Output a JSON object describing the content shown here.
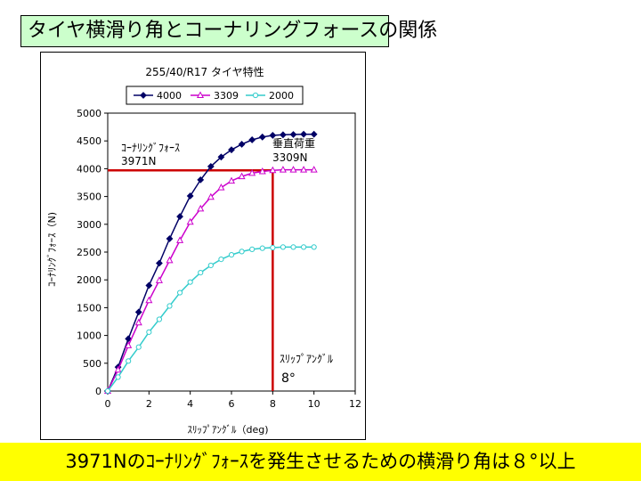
{
  "slide": {
    "title": "タイヤ横滑り角とコーナリングフォースの関係",
    "conclusion": "3971Nのｺｰﾅﾘﾝｸﾞﾌｫｰｽを発生させるための横滑り角は８°以上"
  },
  "colors": {
    "title_bg": "#ccffcc",
    "band_bg": "#ffff00",
    "guide_line": "#cc0000"
  },
  "chart_data": {
    "type": "line",
    "title": "255/40/R17 タイヤ特性",
    "xlabel": "ｽﾘｯﾌﾟｱﾝｸﾞﾙ（deg)",
    "ylabel": "ｺｰﾅﾘﾝｸﾞﾌｫｰｽ（N)",
    "xlim": [
      0,
      12
    ],
    "ylim": [
      0,
      5000
    ],
    "x_ticks": [
      0,
      2,
      4,
      6,
      8,
      10,
      12
    ],
    "y_ticks": [
      0,
      500,
      1000,
      1500,
      2000,
      2500,
      3000,
      3500,
      4000,
      4500,
      5000
    ],
    "grid": false,
    "legend_position": "top",
    "x": [
      0,
      0.5,
      1,
      1.5,
      2,
      2.5,
      3,
      3.5,
      4,
      4.5,
      5,
      5.5,
      6,
      6.5,
      7,
      7.5,
      8,
      8.5,
      9,
      9.5,
      10
    ],
    "series": [
      {
        "name": "4000",
        "color": "#000066",
        "marker": "diamond",
        "values": [
          0,
          430,
          940,
          1420,
          1900,
          2300,
          2740,
          3140,
          3510,
          3800,
          4040,
          4210,
          4340,
          4440,
          4520,
          4570,
          4600,
          4610,
          4615,
          4620,
          4620
        ]
      },
      {
        "name": "3309",
        "color": "#cc00cc",
        "marker": "triangle",
        "values": [
          0,
          380,
          820,
          1230,
          1630,
          1990,
          2350,
          2710,
          3040,
          3280,
          3490,
          3660,
          3780,
          3860,
          3920,
          3950,
          3970,
          3980,
          3980,
          3980,
          3980
        ]
      },
      {
        "name": "2000",
        "color": "#33cccc",
        "marker": "circle",
        "values": [
          0,
          250,
          540,
          790,
          1060,
          1290,
          1530,
          1770,
          1960,
          2130,
          2260,
          2370,
          2450,
          2510,
          2550,
          2570,
          2580,
          2590,
          2590,
          2590,
          2590
        ]
      }
    ],
    "reference": {
      "x": 8,
      "y": 3971
    },
    "annotations": {
      "force_label": "ｺｰﾅﾘﾝｸﾞﾌｫｰｽ",
      "force_value": "3971N",
      "load_label": "垂直荷重",
      "load_value": "3309N",
      "slip_label": "ｽﾘｯﾌﾟｱﾝｸﾞﾙ",
      "slip_value": "8°"
    }
  }
}
